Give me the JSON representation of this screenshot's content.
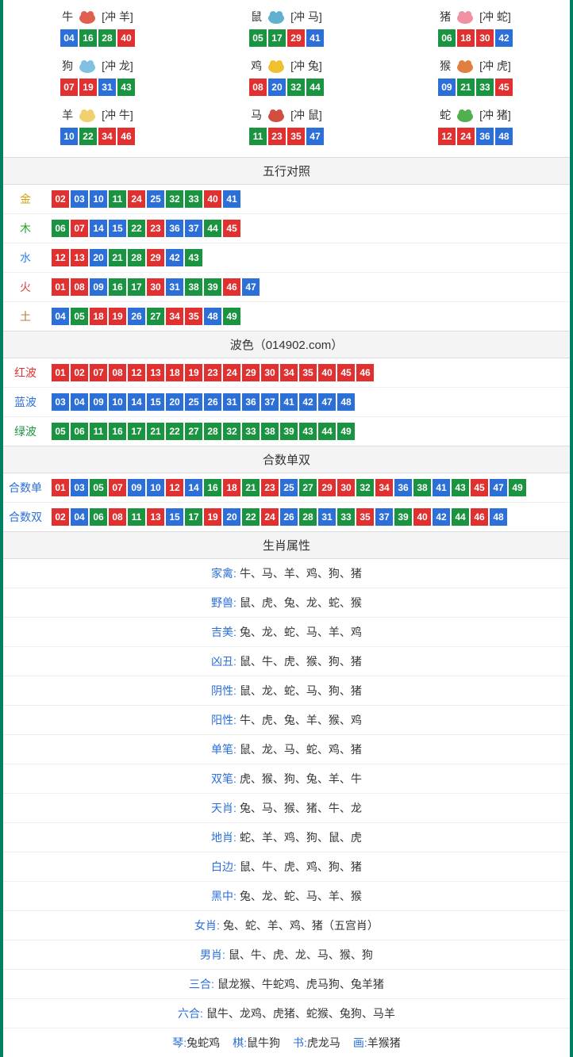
{
  "colors": {
    "red": "#e03030",
    "blue": "#2c6fd8",
    "green": "#1a9440",
    "border": "#008060"
  },
  "zodiac": [
    {
      "name": "牛",
      "icon_color": "#e06050",
      "conf": "[冲 羊]",
      "nums": [
        {
          "n": "04",
          "c": "blue"
        },
        {
          "n": "16",
          "c": "green"
        },
        {
          "n": "28",
          "c": "green"
        },
        {
          "n": "40",
          "c": "red"
        }
      ]
    },
    {
      "name": "鼠",
      "icon_color": "#60b0d0",
      "conf": "[冲 马]",
      "nums": [
        {
          "n": "05",
          "c": "green"
        },
        {
          "n": "17",
          "c": "green"
        },
        {
          "n": "29",
          "c": "red"
        },
        {
          "n": "41",
          "c": "blue"
        }
      ]
    },
    {
      "name": "猪",
      "icon_color": "#f090a0",
      "conf": "[冲 蛇]",
      "nums": [
        {
          "n": "06",
          "c": "green"
        },
        {
          "n": "18",
          "c": "red"
        },
        {
          "n": "30",
          "c": "red"
        },
        {
          "n": "42",
          "c": "blue"
        }
      ]
    },
    {
      "name": "狗",
      "icon_color": "#80c0e0",
      "conf": "[冲 龙]",
      "nums": [
        {
          "n": "07",
          "c": "red"
        },
        {
          "n": "19",
          "c": "red"
        },
        {
          "n": "31",
          "c": "blue"
        },
        {
          "n": "43",
          "c": "green"
        }
      ]
    },
    {
      "name": "鸡",
      "icon_color": "#f0c030",
      "conf": "[冲 兔]",
      "nums": [
        {
          "n": "08",
          "c": "red"
        },
        {
          "n": "20",
          "c": "blue"
        },
        {
          "n": "32",
          "c": "green"
        },
        {
          "n": "44",
          "c": "green"
        }
      ]
    },
    {
      "name": "猴",
      "icon_color": "#e08040",
      "conf": "[冲 虎]",
      "nums": [
        {
          "n": "09",
          "c": "blue"
        },
        {
          "n": "21",
          "c": "green"
        },
        {
          "n": "33",
          "c": "green"
        },
        {
          "n": "45",
          "c": "red"
        }
      ]
    },
    {
      "name": "羊",
      "icon_color": "#f0d070",
      "conf": "[冲 牛]",
      "nums": [
        {
          "n": "10",
          "c": "blue"
        },
        {
          "n": "22",
          "c": "green"
        },
        {
          "n": "34",
          "c": "red"
        },
        {
          "n": "46",
          "c": "red"
        }
      ]
    },
    {
      "name": "马",
      "icon_color": "#d05040",
      "conf": "[冲 鼠]",
      "nums": [
        {
          "n": "11",
          "c": "green"
        },
        {
          "n": "23",
          "c": "red"
        },
        {
          "n": "35",
          "c": "red"
        },
        {
          "n": "47",
          "c": "blue"
        }
      ]
    },
    {
      "name": "蛇",
      "icon_color": "#50b050",
      "conf": "[冲 猪]",
      "nums": [
        {
          "n": "12",
          "c": "red"
        },
        {
          "n": "24",
          "c": "red"
        },
        {
          "n": "36",
          "c": "blue"
        },
        {
          "n": "48",
          "c": "blue"
        }
      ]
    }
  ],
  "wuxing": {
    "title": "五行对照",
    "rows": [
      {
        "label": "金",
        "css": "c-gold",
        "nums": [
          {
            "n": "02",
            "c": "red"
          },
          {
            "n": "03",
            "c": "blue"
          },
          {
            "n": "10",
            "c": "blue"
          },
          {
            "n": "11",
            "c": "green"
          },
          {
            "n": "24",
            "c": "red"
          },
          {
            "n": "25",
            "c": "blue"
          },
          {
            "n": "32",
            "c": "green"
          },
          {
            "n": "33",
            "c": "green"
          },
          {
            "n": "40",
            "c": "red"
          },
          {
            "n": "41",
            "c": "blue"
          }
        ]
      },
      {
        "label": "木",
        "css": "c-wood",
        "nums": [
          {
            "n": "06",
            "c": "green"
          },
          {
            "n": "07",
            "c": "red"
          },
          {
            "n": "14",
            "c": "blue"
          },
          {
            "n": "15",
            "c": "blue"
          },
          {
            "n": "22",
            "c": "green"
          },
          {
            "n": "23",
            "c": "red"
          },
          {
            "n": "36",
            "c": "blue"
          },
          {
            "n": "37",
            "c": "blue"
          },
          {
            "n": "44",
            "c": "green"
          },
          {
            "n": "45",
            "c": "red"
          }
        ]
      },
      {
        "label": "水",
        "css": "c-water",
        "nums": [
          {
            "n": "12",
            "c": "red"
          },
          {
            "n": "13",
            "c": "red"
          },
          {
            "n": "20",
            "c": "blue"
          },
          {
            "n": "21",
            "c": "green"
          },
          {
            "n": "28",
            "c": "green"
          },
          {
            "n": "29",
            "c": "red"
          },
          {
            "n": "42",
            "c": "blue"
          },
          {
            "n": "43",
            "c": "green"
          }
        ]
      },
      {
        "label": "火",
        "css": "c-fire",
        "nums": [
          {
            "n": "01",
            "c": "red"
          },
          {
            "n": "08",
            "c": "red"
          },
          {
            "n": "09",
            "c": "blue"
          },
          {
            "n": "16",
            "c": "green"
          },
          {
            "n": "17",
            "c": "green"
          },
          {
            "n": "30",
            "c": "red"
          },
          {
            "n": "31",
            "c": "blue"
          },
          {
            "n": "38",
            "c": "green"
          },
          {
            "n": "39",
            "c": "green"
          },
          {
            "n": "46",
            "c": "red"
          },
          {
            "n": "47",
            "c": "blue"
          }
        ]
      },
      {
        "label": "土",
        "css": "c-earth",
        "nums": [
          {
            "n": "04",
            "c": "blue"
          },
          {
            "n": "05",
            "c": "green"
          },
          {
            "n": "18",
            "c": "red"
          },
          {
            "n": "19",
            "c": "red"
          },
          {
            "n": "26",
            "c": "blue"
          },
          {
            "n": "27",
            "c": "green"
          },
          {
            "n": "34",
            "c": "red"
          },
          {
            "n": "35",
            "c": "red"
          },
          {
            "n": "48",
            "c": "blue"
          },
          {
            "n": "49",
            "c": "green"
          }
        ]
      }
    ]
  },
  "bose": {
    "title": "波色（014902.com）",
    "rows": [
      {
        "label": "红波",
        "css": "c-red",
        "nums": [
          {
            "n": "01",
            "c": "red"
          },
          {
            "n": "02",
            "c": "red"
          },
          {
            "n": "07",
            "c": "red"
          },
          {
            "n": "08",
            "c": "red"
          },
          {
            "n": "12",
            "c": "red"
          },
          {
            "n": "13",
            "c": "red"
          },
          {
            "n": "18",
            "c": "red"
          },
          {
            "n": "19",
            "c": "red"
          },
          {
            "n": "23",
            "c": "red"
          },
          {
            "n": "24",
            "c": "red"
          },
          {
            "n": "29",
            "c": "red"
          },
          {
            "n": "30",
            "c": "red"
          },
          {
            "n": "34",
            "c": "red"
          },
          {
            "n": "35",
            "c": "red"
          },
          {
            "n": "40",
            "c": "red"
          },
          {
            "n": "45",
            "c": "red"
          },
          {
            "n": "46",
            "c": "red"
          }
        ]
      },
      {
        "label": "蓝波",
        "css": "c-blue",
        "nums": [
          {
            "n": "03",
            "c": "blue"
          },
          {
            "n": "04",
            "c": "blue"
          },
          {
            "n": "09",
            "c": "blue"
          },
          {
            "n": "10",
            "c": "blue"
          },
          {
            "n": "14",
            "c": "blue"
          },
          {
            "n": "15",
            "c": "blue"
          },
          {
            "n": "20",
            "c": "blue"
          },
          {
            "n": "25",
            "c": "blue"
          },
          {
            "n": "26",
            "c": "blue"
          },
          {
            "n": "31",
            "c": "blue"
          },
          {
            "n": "36",
            "c": "blue"
          },
          {
            "n": "37",
            "c": "blue"
          },
          {
            "n": "41",
            "c": "blue"
          },
          {
            "n": "42",
            "c": "blue"
          },
          {
            "n": "47",
            "c": "blue"
          },
          {
            "n": "48",
            "c": "blue"
          }
        ]
      },
      {
        "label": "绿波",
        "css": "c-green",
        "nums": [
          {
            "n": "05",
            "c": "green"
          },
          {
            "n": "06",
            "c": "green"
          },
          {
            "n": "11",
            "c": "green"
          },
          {
            "n": "16",
            "c": "green"
          },
          {
            "n": "17",
            "c": "green"
          },
          {
            "n": "21",
            "c": "green"
          },
          {
            "n": "22",
            "c": "green"
          },
          {
            "n": "27",
            "c": "green"
          },
          {
            "n": "28",
            "c": "green"
          },
          {
            "n": "32",
            "c": "green"
          },
          {
            "n": "33",
            "c": "green"
          },
          {
            "n": "38",
            "c": "green"
          },
          {
            "n": "39",
            "c": "green"
          },
          {
            "n": "43",
            "c": "green"
          },
          {
            "n": "44",
            "c": "green"
          },
          {
            "n": "49",
            "c": "green"
          }
        ]
      }
    ]
  },
  "heshu": {
    "title": "合数单双",
    "rows": [
      {
        "label": "合数单",
        "css": "c-blue",
        "nums": [
          {
            "n": "01",
            "c": "red"
          },
          {
            "n": "03",
            "c": "blue"
          },
          {
            "n": "05",
            "c": "green"
          },
          {
            "n": "07",
            "c": "red"
          },
          {
            "n": "09",
            "c": "blue"
          },
          {
            "n": "10",
            "c": "blue"
          },
          {
            "n": "12",
            "c": "red"
          },
          {
            "n": "14",
            "c": "blue"
          },
          {
            "n": "16",
            "c": "green"
          },
          {
            "n": "18",
            "c": "red"
          },
          {
            "n": "21",
            "c": "green"
          },
          {
            "n": "23",
            "c": "red"
          },
          {
            "n": "25",
            "c": "blue"
          },
          {
            "n": "27",
            "c": "green"
          },
          {
            "n": "29",
            "c": "red"
          },
          {
            "n": "30",
            "c": "red"
          },
          {
            "n": "32",
            "c": "green"
          },
          {
            "n": "34",
            "c": "red"
          },
          {
            "n": "36",
            "c": "blue"
          },
          {
            "n": "38",
            "c": "green"
          },
          {
            "n": "41",
            "c": "blue"
          },
          {
            "n": "43",
            "c": "green"
          },
          {
            "n": "45",
            "c": "red"
          },
          {
            "n": "47",
            "c": "blue"
          },
          {
            "n": "49",
            "c": "green"
          }
        ]
      },
      {
        "label": "合数双",
        "css": "c-blue",
        "nums": [
          {
            "n": "02",
            "c": "red"
          },
          {
            "n": "04",
            "c": "blue"
          },
          {
            "n": "06",
            "c": "green"
          },
          {
            "n": "08",
            "c": "red"
          },
          {
            "n": "11",
            "c": "green"
          },
          {
            "n": "13",
            "c": "red"
          },
          {
            "n": "15",
            "c": "blue"
          },
          {
            "n": "17",
            "c": "green"
          },
          {
            "n": "19",
            "c": "red"
          },
          {
            "n": "20",
            "c": "blue"
          },
          {
            "n": "22",
            "c": "green"
          },
          {
            "n": "24",
            "c": "red"
          },
          {
            "n": "26",
            "c": "blue"
          },
          {
            "n": "28",
            "c": "green"
          },
          {
            "n": "31",
            "c": "blue"
          },
          {
            "n": "33",
            "c": "green"
          },
          {
            "n": "35",
            "c": "red"
          },
          {
            "n": "37",
            "c": "blue"
          },
          {
            "n": "39",
            "c": "green"
          },
          {
            "n": "40",
            "c": "red"
          },
          {
            "n": "42",
            "c": "blue"
          },
          {
            "n": "44",
            "c": "green"
          },
          {
            "n": "46",
            "c": "red"
          },
          {
            "n": "48",
            "c": "blue"
          }
        ]
      }
    ]
  },
  "attrs": {
    "title": "生肖属性",
    "rows": [
      {
        "label": "家禽:",
        "val": "牛、马、羊、鸡、狗、猪"
      },
      {
        "label": "野兽:",
        "val": "鼠、虎、兔、龙、蛇、猴"
      },
      {
        "label": "吉美:",
        "val": "兔、龙、蛇、马、羊、鸡"
      },
      {
        "label": "凶丑:",
        "val": "鼠、牛、虎、猴、狗、猪"
      },
      {
        "label": "阴性:",
        "val": "鼠、龙、蛇、马、狗、猪"
      },
      {
        "label": "阳性:",
        "val": "牛、虎、兔、羊、猴、鸡"
      },
      {
        "label": "单笔:",
        "val": "鼠、龙、马、蛇、鸡、猪"
      },
      {
        "label": "双笔:",
        "val": "虎、猴、狗、兔、羊、牛"
      },
      {
        "label": "天肖:",
        "val": "兔、马、猴、猪、牛、龙"
      },
      {
        "label": "地肖:",
        "val": "蛇、羊、鸡、狗、鼠、虎"
      },
      {
        "label": "白边:",
        "val": "鼠、牛、虎、鸡、狗、猪"
      },
      {
        "label": "黑中:",
        "val": "兔、龙、蛇、马、羊、猴"
      },
      {
        "label": "女肖:",
        "val": "兔、蛇、羊、鸡、猪（五宫肖）"
      },
      {
        "label": "男肖:",
        "val": "鼠、牛、虎、龙、马、猴、狗"
      },
      {
        "label": "三合:",
        "val": "鼠龙猴、牛蛇鸡、虎马狗、兔羊猪"
      },
      {
        "label": "六合:",
        "val": "鼠牛、龙鸡、虎猪、蛇猴、兔狗、马羊"
      }
    ]
  },
  "bottom": [
    {
      "label": "琴:",
      "val": "兔蛇鸡"
    },
    {
      "label": "棋:",
      "val": "鼠牛狗"
    },
    {
      "label": "书:",
      "val": "虎龙马"
    },
    {
      "label": "画:",
      "val": "羊猴猪"
    }
  ]
}
